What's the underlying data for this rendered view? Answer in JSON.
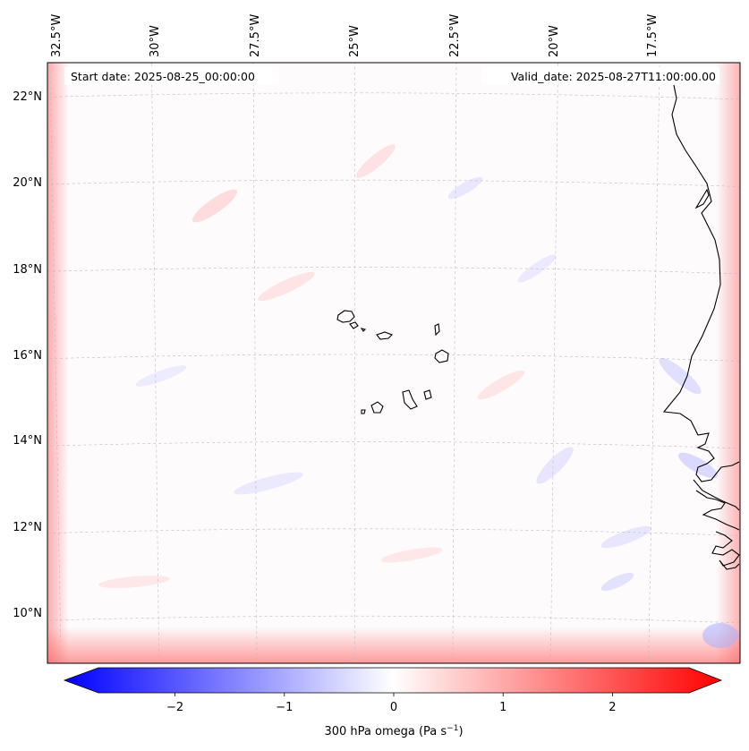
{
  "header": {
    "start_date": "Start date: 2025-08-25_00:00:00",
    "valid_date": "Valid_date: 2025-08-27T11:00:00.00"
  },
  "lon_ticks": [
    {
      "value": -32.5,
      "label": "32.5°W"
    },
    {
      "value": -30.0,
      "label": "30°W"
    },
    {
      "value": -27.5,
      "label": "27.5°W"
    },
    {
      "value": -25.0,
      "label": "25°W"
    },
    {
      "value": -22.5,
      "label": "22.5°W"
    },
    {
      "value": -20.0,
      "label": "20°W"
    },
    {
      "value": -17.5,
      "label": "17.5°W"
    }
  ],
  "lat_ticks": [
    {
      "value": 22,
      "label": "22°N"
    },
    {
      "value": 20,
      "label": "20°N"
    },
    {
      "value": 18,
      "label": "18°N"
    },
    {
      "value": 16,
      "label": "16°N"
    },
    {
      "value": 14,
      "label": "14°N"
    },
    {
      "value": 12,
      "label": "12°N"
    },
    {
      "value": 10,
      "label": "10°N"
    }
  ],
  "colorbar": {
    "label": "300 hPa omega (Pa s",
    "label_exp": "−1",
    "label_close": ")",
    "vmin": -2.7,
    "vmax": 2.7,
    "ticks": [
      {
        "value": -2,
        "label": "−2"
      },
      {
        "value": -1,
        "label": "−1"
      },
      {
        "value": 0,
        "label": "0"
      },
      {
        "value": 1,
        "label": "1"
      },
      {
        "value": 2,
        "label": "2"
      }
    ],
    "color_low": "#0000ff",
    "color_mid": "#ffffff",
    "color_high": "#ff0000"
  },
  "colors": {
    "frame": "#000000",
    "coast": "#000000",
    "grid": "#bbbbbb",
    "map_bg": "#fdfbfc"
  }
}
